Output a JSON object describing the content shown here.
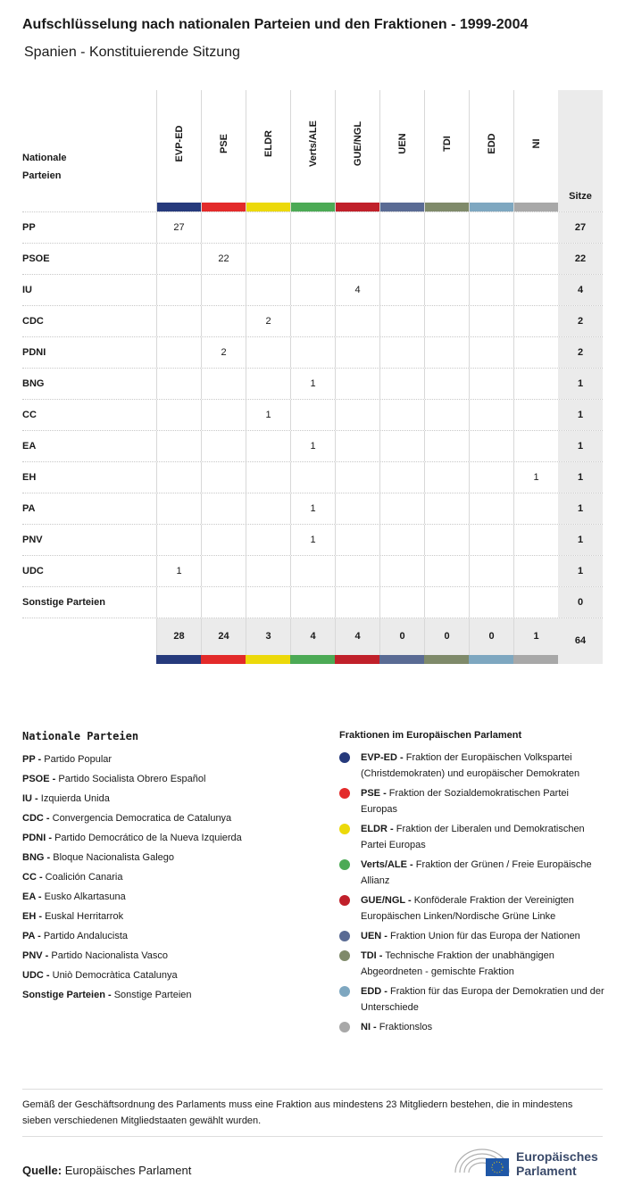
{
  "header": {
    "title": "Aufschlüsselung nach nationalen Parteien und den Fraktionen - 1999-2004",
    "subtitle": "Spanien - Konstituierende Sitzung"
  },
  "chart_data": {
    "type": "table",
    "row_header": "Nationale Parteien",
    "total_header": "Sitze",
    "groups": [
      {
        "name": "EVP-ED",
        "color": "#263a7c"
      },
      {
        "name": "PSE",
        "color": "#e32a2a"
      },
      {
        "name": "ELDR",
        "color": "#ecd90a"
      },
      {
        "name": "Verts/ALE",
        "color": "#4caa55"
      },
      {
        "name": "GUE/NGL",
        "color": "#c0202a"
      },
      {
        "name": "UEN",
        "color": "#5a6b94"
      },
      {
        "name": "TDI",
        "color": "#7f8a6a"
      },
      {
        "name": "EDD",
        "color": "#7ea7c0"
      },
      {
        "name": "NI",
        "color": "#a8a8a8"
      }
    ],
    "rows": [
      {
        "party": "PP",
        "values": [
          "27",
          "",
          "",
          "",
          "",
          "",
          "",
          "",
          ""
        ],
        "total": "27"
      },
      {
        "party": "PSOE",
        "values": [
          "",
          "22",
          "",
          "",
          "",
          "",
          "",
          "",
          ""
        ],
        "total": "22"
      },
      {
        "party": "IU",
        "values": [
          "",
          "",
          "",
          "",
          "4",
          "",
          "",
          "",
          ""
        ],
        "total": "4"
      },
      {
        "party": "CDC",
        "values": [
          "",
          "",
          "2",
          "",
          "",
          "",
          "",
          "",
          ""
        ],
        "total": "2"
      },
      {
        "party": "PDNI",
        "values": [
          "",
          "2",
          "",
          "",
          "",
          "",
          "",
          "",
          ""
        ],
        "total": "2"
      },
      {
        "party": "BNG",
        "values": [
          "",
          "",
          "",
          "1",
          "",
          "",
          "",
          "",
          ""
        ],
        "total": "1"
      },
      {
        "party": "CC",
        "values": [
          "",
          "",
          "1",
          "",
          "",
          "",
          "",
          "",
          ""
        ],
        "total": "1"
      },
      {
        "party": "EA",
        "values": [
          "",
          "",
          "",
          "1",
          "",
          "",
          "",
          "",
          ""
        ],
        "total": "1"
      },
      {
        "party": "EH",
        "values": [
          "",
          "",
          "",
          "",
          "",
          "",
          "",
          "",
          "1"
        ],
        "total": "1"
      },
      {
        "party": "PA",
        "values": [
          "",
          "",
          "",
          "1",
          "",
          "",
          "",
          "",
          ""
        ],
        "total": "1"
      },
      {
        "party": "PNV",
        "values": [
          "",
          "",
          "",
          "1",
          "",
          "",
          "",
          "",
          ""
        ],
        "total": "1"
      },
      {
        "party": "UDC",
        "values": [
          "1",
          "",
          "",
          "",
          "",
          "",
          "",
          "",
          ""
        ],
        "total": "1"
      },
      {
        "party": "Sonstige Parteien",
        "values": [
          "",
          "",
          "",
          "",
          "",
          "",
          "",
          "",
          ""
        ],
        "total": "0"
      }
    ],
    "totals": [
      "28",
      "24",
      "3",
      "4",
      "4",
      "0",
      "0",
      "0",
      "1"
    ],
    "grand_total": "64"
  },
  "legend_parties": {
    "title": "Nationale Parteien",
    "items": [
      {
        "abbr": "PP -",
        "name": "Partido Popular"
      },
      {
        "abbr": "PSOE -",
        "name": "Partido Socialista Obrero Español"
      },
      {
        "abbr": "IU -",
        "name": "Izquierda Unida"
      },
      {
        "abbr": "CDC -",
        "name": "Convergencia Democratica de Catalunya"
      },
      {
        "abbr": "PDNI -",
        "name": "Partido Democrático de la Nueva Izquierda"
      },
      {
        "abbr": "BNG -",
        "name": "Bloque Nacionalista Galego"
      },
      {
        "abbr": "CC -",
        "name": "Coalición Canaria"
      },
      {
        "abbr": "EA -",
        "name": "Eusko Alkartasuna"
      },
      {
        "abbr": "EH -",
        "name": "Euskal Herritarrok"
      },
      {
        "abbr": "PA -",
        "name": "Partido Andalucista"
      },
      {
        "abbr": "PNV -",
        "name": "Partido Nacionalista Vasco"
      },
      {
        "abbr": "UDC -",
        "name": "Uniò Democràtica Catalunya"
      },
      {
        "abbr": "Sonstige Parteien -",
        "name": "Sonstige Parteien"
      }
    ]
  },
  "legend_groups": {
    "title": "Fraktionen im Europäischen Parlament",
    "items": [
      {
        "abbr": "EVP-ED -",
        "name": "Fraktion der Europäischen Volkspartei (Christdemokraten) und europäischer Demokraten"
      },
      {
        "abbr": "PSE -",
        "name": "Fraktion der Sozialdemokratischen Partei Europas"
      },
      {
        "abbr": "ELDR -",
        "name": "Fraktion der Liberalen und Demokratischen Partei Europas"
      },
      {
        "abbr": "Verts/ALE -",
        "name": "Fraktion der Grünen / Freie Europäische Allianz"
      },
      {
        "abbr": "GUE/NGL -",
        "name": "Konföderale Fraktion der Vereinigten Europäischen Linken/Nordische Grüne Linke"
      },
      {
        "abbr": "UEN -",
        "name": "Fraktion Union für das Europa der Nationen"
      },
      {
        "abbr": "TDI -",
        "name": "Technische Fraktion der unabhängigen Abgeordneten - gemischte Fraktion"
      },
      {
        "abbr": "EDD -",
        "name": "Fraktion für das Europa der Demokratien und der Unterschiede"
      },
      {
        "abbr": "NI -",
        "name": "Fraktionslos"
      }
    ]
  },
  "footer": {
    "note": "Gemäß der Geschäftsordnung des Parlaments muss eine Fraktion aus mindestens 23 Mitgliedern bestehen, die in mindestens sieben verschiedenen Mitgliedstaaten gewählt wurden.",
    "source_label": "Quelle:",
    "source": "Europäisches Parlament",
    "logo_line1": "Europäisches",
    "logo_line2": "Parlament"
  }
}
